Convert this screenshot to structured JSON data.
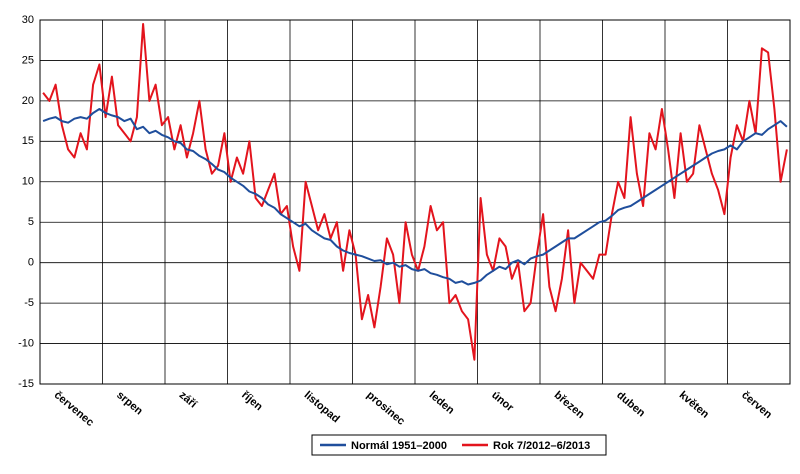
{
  "chart_data": {
    "type": "line",
    "categories": [
      null,
      null,
      "červenec",
      null,
      null,
      null,
      null,
      null,
      null,
      null,
      null,
      null,
      "srpen",
      null,
      null,
      null,
      null,
      null,
      null,
      null,
      null,
      null,
      "září",
      null,
      null,
      null,
      null,
      null,
      null,
      null,
      null,
      null,
      "říjen",
      null,
      null,
      null,
      null,
      null,
      null,
      null,
      null,
      null,
      "listopad",
      null,
      null,
      null,
      null,
      null,
      null,
      null,
      null,
      null,
      "prosinec",
      null,
      null,
      null,
      null,
      null,
      null,
      null,
      null,
      null,
      "leden",
      null,
      null,
      null,
      null,
      null,
      null,
      null,
      null,
      null,
      "únor",
      null,
      null,
      null,
      null,
      null,
      null,
      null,
      null,
      null,
      "březen",
      null,
      null,
      null,
      null,
      null,
      null,
      null,
      null,
      null,
      "duben",
      null,
      null,
      null,
      null,
      null,
      null,
      null,
      null,
      null,
      "květen",
      null,
      null,
      null,
      null,
      null,
      null,
      null,
      null,
      null,
      "červen",
      null,
      null,
      null,
      null,
      null,
      null,
      null
    ],
    "series": [
      {
        "name": "Normál 1951–2000",
        "color": "#1f4e9c",
        "values": [
          17.5,
          17.8,
          18,
          17.5,
          17.3,
          17.8,
          18,
          17.8,
          18.5,
          19,
          18.5,
          18.2,
          18,
          17.5,
          17.8,
          16.5,
          16.8,
          16,
          16.3,
          15.8,
          15.5,
          15,
          14.8,
          14,
          13.8,
          13.2,
          12.8,
          12.2,
          11.5,
          11.2,
          10.5,
          10,
          9.5,
          8.8,
          8.5,
          8,
          7.2,
          6.8,
          6,
          5.5,
          5,
          4.5,
          4.8,
          4,
          3.5,
          3,
          2.8,
          2,
          1.5,
          1.2,
          1,
          0.8,
          0.5,
          0.2,
          0.3,
          -0.2,
          0,
          -0.5,
          -0.3,
          -0.8,
          -1,
          -0.8,
          -1.3,
          -1.5,
          -1.8,
          -2,
          -2.5,
          -2.3,
          -2.7,
          -2.5,
          -2.2,
          -1.5,
          -1,
          -0.5,
          -0.8,
          0,
          0.3,
          -0.2,
          0.5,
          0.8,
          1,
          1.5,
          2,
          2.5,
          3,
          3,
          3.5,
          4,
          4.5,
          5,
          5.2,
          5.8,
          6.5,
          6.8,
          7,
          7.5,
          8,
          8.5,
          9,
          9.5,
          10,
          10.5,
          11,
          11.5,
          12,
          12.5,
          13,
          13.5,
          13.8,
          14,
          14.5,
          14,
          15,
          15.5,
          16,
          15.8,
          16.5,
          17,
          17.5,
          16.8
        ]
      },
      {
        "name": "Rok 7/2012–6/2013",
        "color": "#e3141d",
        "values": [
          21,
          20,
          22,
          17,
          14,
          13,
          16,
          14,
          22,
          24.5,
          18,
          23,
          17,
          16,
          15,
          18,
          29.5,
          20,
          22,
          17,
          18,
          14,
          17,
          13,
          16,
          20,
          14,
          11,
          12,
          16,
          10,
          13,
          11,
          15,
          8,
          7,
          9,
          11,
          6,
          7,
          2,
          -1,
          10,
          7,
          4,
          6,
          3,
          5,
          -1,
          4,
          1,
          -7,
          -4,
          -8,
          -3,
          3,
          1,
          -5,
          5,
          1,
          -1,
          2,
          7,
          4,
          5,
          -5,
          -4,
          -6,
          -7,
          -12,
          8,
          1,
          -1,
          3,
          2,
          -2,
          0,
          -6,
          -5,
          1,
          6,
          -3,
          -6,
          -2,
          4,
          -5,
          0,
          -1,
          -2,
          1,
          1,
          6,
          10,
          8,
          18,
          11,
          7,
          16,
          14,
          19,
          14,
          8,
          16,
          10,
          11,
          17,
          14,
          11,
          9,
          6,
          13,
          17,
          15,
          20,
          16,
          26.5,
          26,
          19,
          10,
          14
        ]
      }
    ],
    "ylim": [
      -15,
      30
    ],
    "yticks": [
      -15,
      -10,
      -5,
      0,
      5,
      10,
      15,
      20,
      25,
      30
    ],
    "grid": true,
    "legend": "bottom"
  }
}
